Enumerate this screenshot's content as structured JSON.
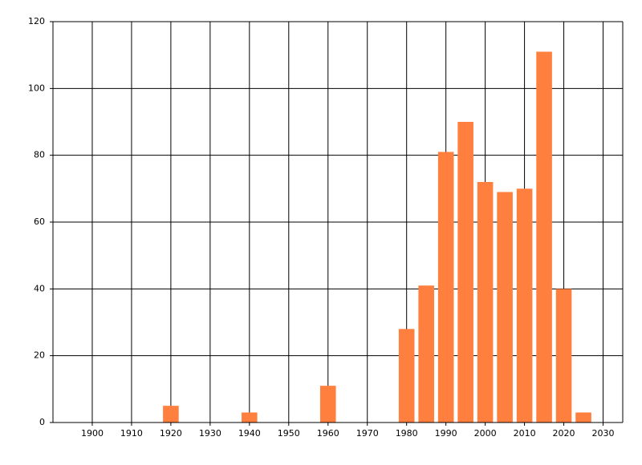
{
  "chart_data": {
    "type": "bar",
    "x": [
      1920,
      1940,
      1960,
      1980,
      1985,
      1990,
      1995,
      2000,
      2005,
      2010,
      2015,
      2020,
      2025
    ],
    "values": [
      5,
      3,
      11,
      28,
      41,
      81,
      90,
      72,
      69,
      70,
      111,
      40,
      3
    ],
    "color": "#ff7f3f",
    "xlim": [
      1890,
      2035
    ],
    "xticks": [
      1900,
      1910,
      1920,
      1930,
      1940,
      1950,
      1960,
      1970,
      1980,
      1990,
      2000,
      2010,
      2020,
      2030
    ],
    "ylim": [
      0,
      120
    ],
    "yticks": [
      0,
      20,
      40,
      60,
      80,
      100,
      120
    ],
    "grid": true
  }
}
